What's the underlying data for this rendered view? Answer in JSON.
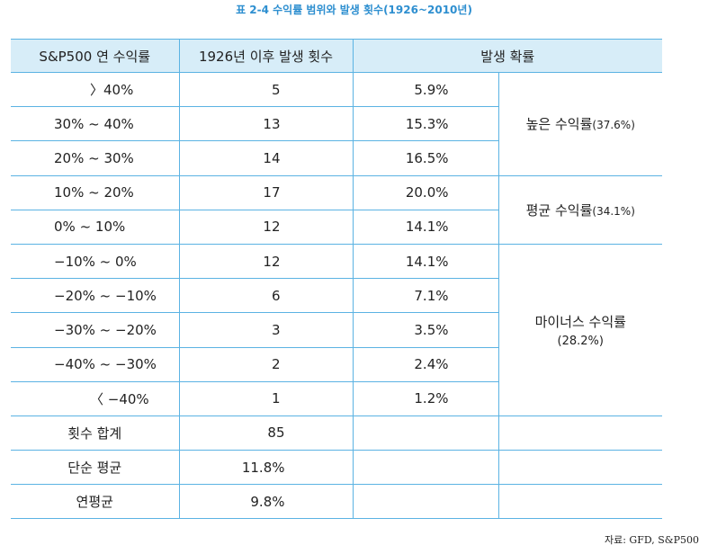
{
  "title": "표 2-4 수익률 범위와 발생 횟수(1926~2010년)",
  "headers": [
    "S&P500 연 수익률",
    "1926년 이후 발생 횟수",
    "발생 확률"
  ],
  "rows": [
    {
      "range": "〉40%",
      "count": "5",
      "prob": "5.9%"
    },
    {
      "range": "30% ~ 40%",
      "count": "13",
      "prob": "15.3%"
    },
    {
      "range": "20% ~ 30%",
      "count": "14",
      "prob": "16.5%"
    },
    {
      "range": "10% ~ 20%",
      "count": "17",
      "prob": "20.0%"
    },
    {
      "range": "0% ~ 10%",
      "count": "12",
      "prob": "14.1%"
    },
    {
      "range": "−10% ~ 0%",
      "count": "12",
      "prob": "14.1%"
    },
    {
      "range": "−20% ~ −10%",
      "count": "6",
      "prob": "7.1%"
    },
    {
      "range": "−30% ~ −20%",
      "count": "3",
      "prob": "3.5%"
    },
    {
      "range": "−40% ~ −30%",
      "count": "2",
      "prob": "2.4%"
    },
    {
      "range": "〈 −40%",
      "count": "1",
      "prob": "1.2%"
    }
  ],
  "bands": {
    "high": {
      "label": "높은 수익률",
      "pct": "(37.6%)"
    },
    "avg": {
      "label": "평균 수익률",
      "pct": "(34.1%)"
    },
    "minus": {
      "label": "마이너스 수익률",
      "pct": "(28.2%)"
    }
  },
  "summary": [
    {
      "label": "횟수 합계",
      "value": "85"
    },
    {
      "label": "단순 평균",
      "value": "11.8%"
    },
    {
      "label": "연평균",
      "value": "9.8%"
    }
  ],
  "source": "자료: GFD, S&P500"
}
